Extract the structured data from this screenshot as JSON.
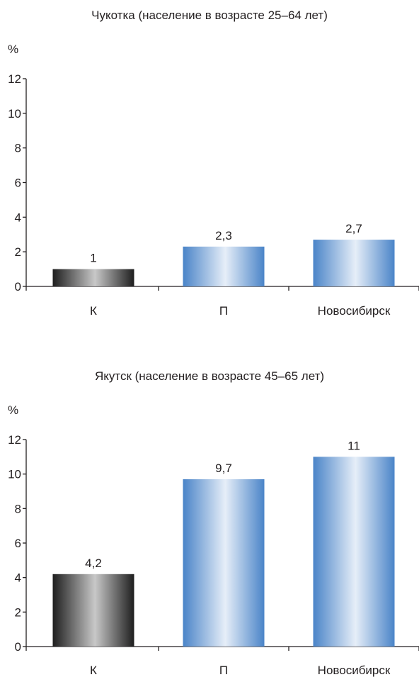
{
  "chart_data": [
    {
      "type": "bar",
      "title": "Чукотка (население в возрасте 25–64 лет)",
      "ylabel": "%",
      "xlabel": "",
      "categories": [
        "К",
        "П",
        "Новосибирск"
      ],
      "values": [
        1,
        2.3,
        2.7
      ],
      "data_labels": [
        "1",
        "2,3",
        "2,7"
      ],
      "ylim": [
        0,
        12
      ],
      "yticks": [
        0,
        2,
        4,
        6,
        8,
        10,
        12
      ],
      "ytick_labels": [
        "0",
        "2",
        "4",
        "6",
        "8",
        "10",
        "12"
      ],
      "grid": false,
      "bar_colors": [
        "dark-gray-gradient",
        "blue-gradient",
        "blue-gradient"
      ]
    },
    {
      "type": "bar",
      "title": "Якутск (население в возрасте 45–65 лет)",
      "ylabel": "%",
      "xlabel": "",
      "categories": [
        "К",
        "П",
        "Новосибирск"
      ],
      "values": [
        4.2,
        9.7,
        11
      ],
      "data_labels": [
        "4,2",
        "9,7",
        "11"
      ],
      "ylim": [
        0,
        12
      ],
      "yticks": [
        0,
        2,
        4,
        6,
        8,
        10,
        12
      ],
      "ytick_labels": [
        "0",
        "2",
        "4",
        "6",
        "8",
        "10",
        "12"
      ],
      "grid": false,
      "bar_colors": [
        "dark-gray-gradient",
        "blue-gradient",
        "blue-gradient"
      ]
    }
  ],
  "colors": {
    "axis": "#231f20",
    "dark_edge": "#1e1e1e",
    "dark_mid": "#c8c8c8",
    "blue_edge": "#4a84c8",
    "blue_mid": "#e6eef8"
  }
}
